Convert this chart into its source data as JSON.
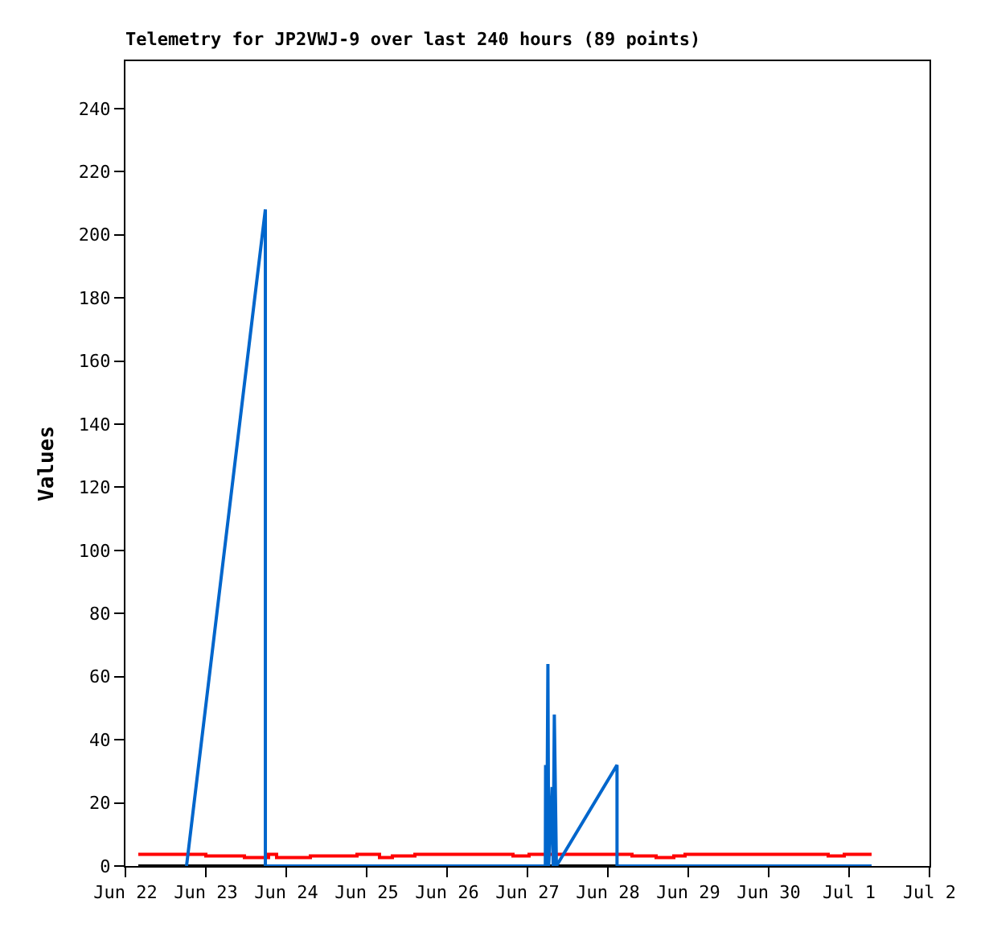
{
  "chart_data": {
    "type": "line",
    "title": "Telemetry for JP2VWJ-9 over last 240 hours (89 points)",
    "ylabel": "Values",
    "xlim": [
      "--06-22",
      "--07-02"
    ],
    "xticks": [
      {
        "value": "--06-22",
        "label": "Jun 22"
      },
      {
        "value": "--06-23",
        "label": "Jun 23"
      },
      {
        "value": "--06-24",
        "label": "Jun 24"
      },
      {
        "value": "--06-25",
        "label": "Jun 25"
      },
      {
        "value": "--06-26",
        "label": "Jun 26"
      },
      {
        "value": "--06-27",
        "label": "Jun 27"
      },
      {
        "value": "--06-28",
        "label": "Jun 28"
      },
      {
        "value": "--06-29",
        "label": "Jun 29"
      },
      {
        "value": "--06-30",
        "label": "Jun 30"
      },
      {
        "value": "--07-01",
        "label": "Jul 1"
      },
      {
        "value": "--07-02",
        "label": "Jul 2"
      }
    ],
    "ylim": [
      0,
      255
    ],
    "yticks": [
      0,
      20,
      40,
      60,
      80,
      100,
      120,
      140,
      160,
      180,
      200,
      220,
      240
    ],
    "marker": "none",
    "line_style": "solid",
    "series": [
      {
        "type": "step",
        "color": "#ff0000",
        "x": [
          "--06-22T03:50",
          "--06-23T00:00",
          "--06-23T11:31",
          "--06-23T18:43",
          "--06-23T21:07",
          "--06-24T07:12",
          "--06-24T21:07",
          "--06-25T03:50",
          "--06-25T07:41",
          "--06-25T14:24",
          "--06-26T19:41",
          "--06-27T00:29",
          "--06-28T07:12",
          "--06-28T14:24",
          "--06-28T19:41",
          "--06-28T23:02",
          "--06-30T17:46",
          "--06-30T22:34",
          "--07-01T06:43"
        ],
        "values": [
          3.7,
          3.2,
          2.7,
          3.7,
          2.7,
          3.2,
          3.7,
          2.7,
          3.2,
          3.7,
          3.2,
          3.7,
          3.2,
          2.7,
          3.2,
          3.7,
          3.2,
          3.7,
          3.7
        ]
      },
      {
        "color": "#000000",
        "x": [
          "--06-22T03:50",
          "--07-01T06:43"
        ],
        "values": [
          0,
          0
        ]
      },
      {
        "type": "line",
        "color": "#0066cc",
        "x": [
          "--06-22T18:14",
          "--06-23T17:46",
          "--06-23T17:46",
          "--06-27T05:20",
          "--06-27T05:25",
          "--06-27T05:45",
          "--06-27T06:06",
          "--06-27T06:20",
          "--06-27T07:20",
          "--06-27T07:40",
          "--06-27T08:01",
          "--06-27T08:38",
          "--06-28T02:44",
          "--06-28T02:44",
          "--07-01T06:43"
        ],
        "values": [
          0,
          208,
          0,
          0,
          32,
          0,
          64,
          0,
          25,
          0,
          48,
          0,
          32,
          0,
          0
        ]
      }
    ]
  }
}
